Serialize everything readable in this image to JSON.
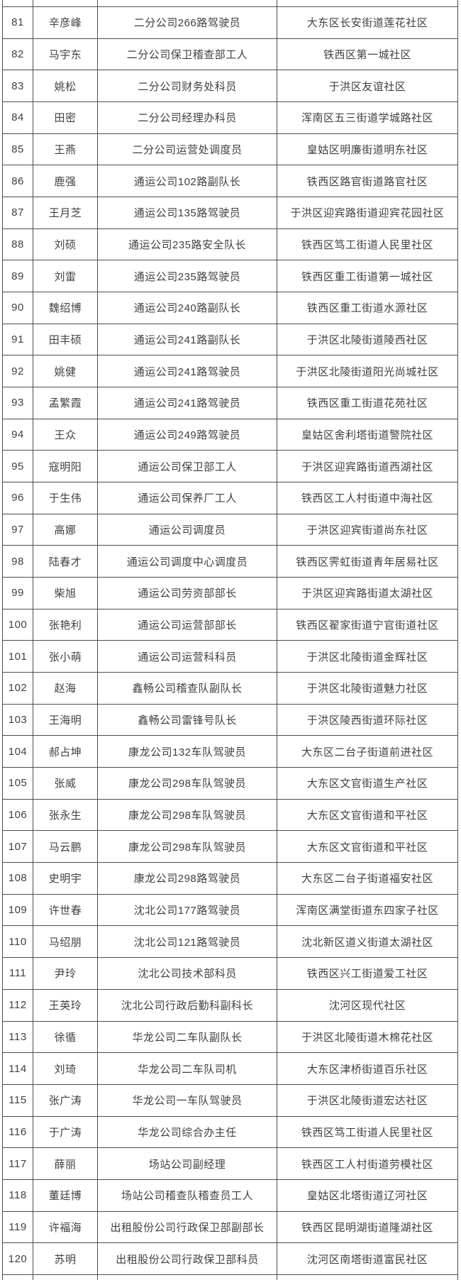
{
  "colors": {
    "background": "#ffffff",
    "border": "#4d4d4d",
    "text": "#3f3f3f"
  },
  "rows": [
    {
      "no": "81",
      "name": "辛彦峰",
      "title": "二分公司266路驾驶员",
      "community": "大东区长安街道莲花社区"
    },
    {
      "no": "82",
      "name": "马宇东",
      "title": "二分公司保卫稽查部工人",
      "community": "铁西区第一城社区"
    },
    {
      "no": "83",
      "name": "姚松",
      "title": "二分公司财务处科员",
      "community": "于洪区友谊社区"
    },
    {
      "no": "84",
      "name": "田密",
      "title": "二分公司经理办科员",
      "community": "浑南区五三街道学城路社区"
    },
    {
      "no": "85",
      "name": "王燕",
      "title": "二分公司运营处调度员",
      "community": "皇姑区明廉街道明东社区"
    },
    {
      "no": "86",
      "name": "鹿强",
      "title": "通运公司102路副队长",
      "community": "铁西区路官街道路官社区"
    },
    {
      "no": "87",
      "name": "王月芝",
      "title": "通运公司135路驾驶员",
      "community": "于洪区迎宾路街道迎宾花园社区"
    },
    {
      "no": "88",
      "name": "刘硕",
      "title": "通运公司235路安全队长",
      "community": "铁西区笃工街道人民里社区"
    },
    {
      "no": "89",
      "name": "刘雷",
      "title": "通运公司235路驾驶员",
      "community": "铁西区重工街道第一城社区"
    },
    {
      "no": "90",
      "name": "魏绍博",
      "title": "通运公司240路副队长",
      "community": "铁西区重工街道水源社区"
    },
    {
      "no": "91",
      "name": "田丰硕",
      "title": "通运公司241路副队长",
      "community": "于洪区北陵街道陵西社区"
    },
    {
      "no": "92",
      "name": "姚健",
      "title": "通运公司241路驾驶员",
      "community": "于洪区北陵街道阳光尚城社区"
    },
    {
      "no": "93",
      "name": "孟繁霞",
      "title": "通运公司241路驾驶员",
      "community": "铁西区重工街道花苑社区"
    },
    {
      "no": "94",
      "name": "王众",
      "title": "通运公司249路驾驶员",
      "community": "皇姑区舍利塔街道警院社区"
    },
    {
      "no": "95",
      "name": "寇明阳",
      "title": "通运公司保卫部工人",
      "community": "于洪区迎宾路街道西湖社区"
    },
    {
      "no": "96",
      "name": "于生伟",
      "title": "通运公司保养厂工人",
      "community": "铁西区工人村街道中海社区"
    },
    {
      "no": "97",
      "name": "高娜",
      "title": "通运公司调度员",
      "community": "于洪区迎宾街道尚东社区"
    },
    {
      "no": "98",
      "name": "陆春才",
      "title": "通运公司调度中心调度员",
      "community": "铁西区霁虹街道青年居易社区"
    },
    {
      "no": "99",
      "name": "柴旭",
      "title": "通运公司劳资部部长",
      "community": "于洪区迎宾路街道太湖社区"
    },
    {
      "no": "100",
      "name": "张艳利",
      "title": "通运公司运营部部长",
      "community": "铁西区翟家街道宁官街道社区"
    },
    {
      "no": "101",
      "name": "张小萌",
      "title": "通运公司运营科科员",
      "community": "于洪区北陵街道金辉社区"
    },
    {
      "no": "102",
      "name": "赵海",
      "title": "鑫畅公司稽查队副队长",
      "community": "于洪区北陵街道魅力社区"
    },
    {
      "no": "103",
      "name": "王海明",
      "title": "鑫畅公司雷锋号队长",
      "community": "于洪区陵西街道环际社区"
    },
    {
      "no": "104",
      "name": "郝占坤",
      "title": "康龙公司132车队驾驶员",
      "community": "大东区二台子街道前进社区"
    },
    {
      "no": "105",
      "name": "张威",
      "title": "康龙公司298车队驾驶员",
      "community": "大东区文官街道生产社区"
    },
    {
      "no": "106",
      "name": "张永生",
      "title": "康龙公司298车队驾驶员",
      "community": "大东区文官街道和平社区"
    },
    {
      "no": "107",
      "name": "马云鹏",
      "title": "康龙公司298车队驾驶员",
      "community": "大东区文官街道和平社区"
    },
    {
      "no": "108",
      "name": "史明宇",
      "title": "康龙公司298路驾驶员",
      "community": "大东区二台子街道福安社区"
    },
    {
      "no": "109",
      "name": "许世春",
      "title": "沈北公司177路驾驶员",
      "community": "浑南区满堂街道东四家子社区"
    },
    {
      "no": "110",
      "name": "马绍朋",
      "title": "沈北公司121路驾驶员",
      "community": "沈北新区道义街道太湖社区"
    },
    {
      "no": "111",
      "name": "尹玲",
      "title": "沈北公司技术部科员",
      "community": "铁西区兴工街道爱工社区"
    },
    {
      "no": "112",
      "name": "王英玲",
      "title": "沈北公司行政后勤科副科长",
      "community": "沈河区现代社区"
    },
    {
      "no": "113",
      "name": "徐循",
      "title": "华龙公司二车队副队长",
      "community": "于洪区北陵街道木棉花社区"
    },
    {
      "no": "114",
      "name": "刘琦",
      "title": "华龙公司二车队司机",
      "community": "大东区津桥街道百乐社区"
    },
    {
      "no": "115",
      "name": "张广涛",
      "title": "华龙公司一车队驾驶员",
      "community": "于洪区北陵街道宏达社区"
    },
    {
      "no": "116",
      "name": "于广涛",
      "title": "华龙公司综合办主任",
      "community": "铁西区笃工街道人民里社区"
    },
    {
      "no": "117",
      "name": "薛丽",
      "title": "场站公司副经理",
      "community": "铁西区工人村街道劳模社区"
    },
    {
      "no": "118",
      "name": "董廷博",
      "title": "场站公司稽查队稽查员工人",
      "community": "皇姑区北塔街道辽河社区"
    },
    {
      "no": "119",
      "name": "许福海",
      "title": "出租股份公司行政保卫部副部长",
      "community": "铁西区昆明湖街道隆湖社区"
    },
    {
      "no": "120",
      "name": "苏明",
      "title": "出租股份公司行政保卫部科员",
      "community": "沈河区南塔街道富民社区"
    }
  ]
}
